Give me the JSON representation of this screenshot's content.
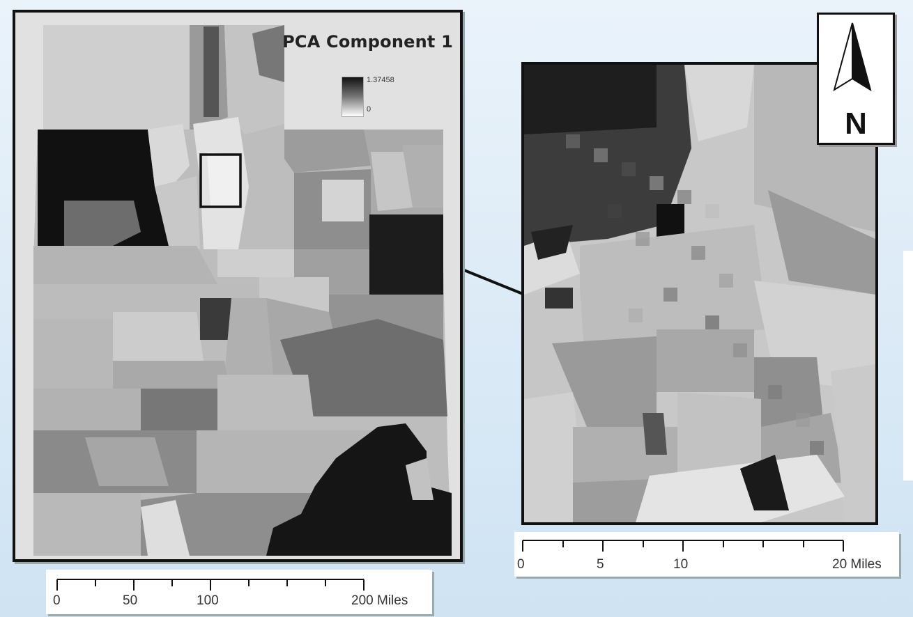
{
  "legend": {
    "title": "PCA Component 1",
    "max_label": "1.37458",
    "min_label": "0"
  },
  "north_arrow": {
    "label": "N"
  },
  "scalebar_main": {
    "ticks": [
      "0",
      "50",
      "100",
      "200 Miles"
    ]
  },
  "scalebar_inset": {
    "ticks": [
      "0",
      "5",
      "10",
      "20 Miles"
    ]
  },
  "colors": {
    "frame": "#111111",
    "background": "#dbeaf6"
  }
}
